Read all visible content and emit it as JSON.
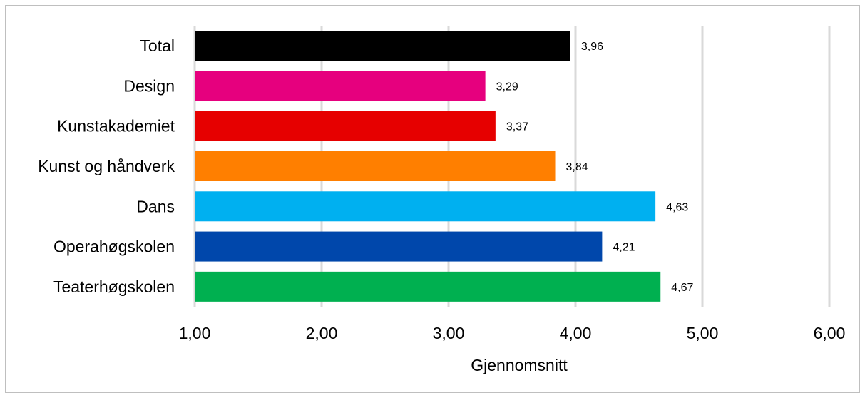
{
  "chart_data": {
    "type": "bar",
    "orientation": "horizontal",
    "categories": [
      "Total",
      "Design",
      "Kunstakademiet",
      "Kunst og håndverk",
      "Dans",
      "Operahøgskolen",
      "Teaterhøgskolen"
    ],
    "values": [
      3.96,
      3.29,
      3.37,
      3.84,
      4.63,
      4.21,
      4.67
    ],
    "data_labels": [
      "3,96",
      "3,29",
      "3,37",
      "3,84",
      "4,63",
      "4,21",
      "4,67"
    ],
    "colors": [
      "#000000",
      "#e6007e",
      "#e60000",
      "#ff7f00",
      "#00b0f0",
      "#0047ab",
      "#00b050"
    ],
    "xlabel": "Gjennomsnitt",
    "xlim": [
      1,
      6
    ],
    "xticks": [
      1,
      2,
      3,
      4,
      5,
      6
    ],
    "xtick_labels": [
      "1,00",
      "2,00",
      "3,00",
      "4,00",
      "5,00",
      "6,00"
    ],
    "grid": "vertical",
    "legend": "none"
  }
}
